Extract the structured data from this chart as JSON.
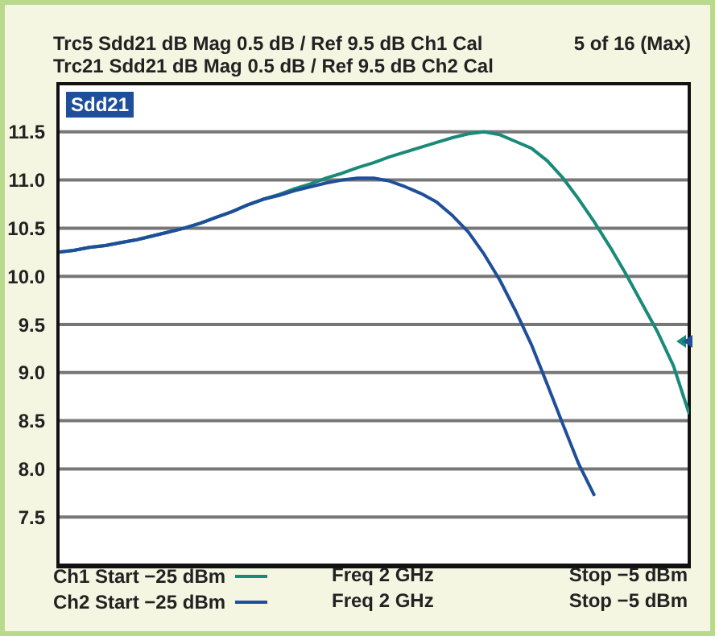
{
  "chart_data": {
    "type": "line",
    "title": "Trc5 Sdd21 dB Mag 0.5 dB / Ref 9.5 dB Ch1 Cal",
    "subtitle": "Trc21 Sdd21 dB Mag 0.5 dB / Ref 9.5 dB Ch2 Cal",
    "annotations": [
      "5 of 16 (Max)",
      "Sdd21",
      "Freq 2 GHz",
      "Stop −5 dBm",
      "Freq 2 GHz",
      "Stop −5 dBm"
    ],
    "categories": [
      null,
      null,
      null,
      null,
      null,
      null,
      null,
      null,
      null,
      null,
      null,
      null,
      null,
      null,
      null,
      null,
      null,
      null,
      null,
      null,
      null,
      null,
      null,
      null,
      null,
      null,
      null,
      null,
      null,
      null,
      null,
      null,
      null,
      null,
      null,
      null,
      null,
      null,
      null,
      null,
      null
    ],
    "ylim": [
      7,
      12
    ],
    "yticks": [
      {
        "value": 7.5,
        "label": "7.5"
      },
      {
        "value": 8,
        "label": "8.0"
      },
      {
        "value": 8.5,
        "label": "8.5"
      },
      {
        "value": 9,
        "label": "9.0"
      },
      {
        "value": 9.5,
        "label": "9.5"
      },
      {
        "value": 10,
        "label": "10.0"
      },
      {
        "value": 10.5,
        "label": "10.5"
      },
      {
        "value": 11,
        "label": "11.0"
      },
      {
        "value": 11.5,
        "label": "11.5"
      }
    ],
    "tick_labels": "y",
    "grid": true,
    "legend": "bottom left",
    "marker": "none",
    "line_style": "solid",
    "series": [
      {
        "name": "Ch1 Start −25 dBm",
        "color": "#1a8a78",
        "values": [
          10.25,
          10.27,
          10.3,
          10.32,
          10.35,
          10.38,
          10.42,
          10.46,
          10.5,
          10.55,
          10.61,
          10.67,
          10.74,
          10.8,
          10.85,
          10.91,
          10.96,
          11.02,
          11.07,
          11.13,
          11.18,
          11.24,
          11.29,
          11.34,
          11.39,
          11.44,
          11.48,
          11.5,
          11.47,
          11.4,
          11.33,
          11.2,
          11.02,
          10.8,
          10.56,
          10.3,
          10.02,
          9.72,
          9.42,
          9.07,
          8.57
        ]
      },
      {
        "name": "Ch2 Start −25 dBm",
        "color": "#1f4e9a",
        "values": [
          10.25,
          10.27,
          10.3,
          10.32,
          10.35,
          10.38,
          10.42,
          10.46,
          10.5,
          10.55,
          10.61,
          10.67,
          10.74,
          10.8,
          10.84,
          10.89,
          10.93,
          10.97,
          11.0,
          11.02,
          11.02,
          10.99,
          10.93,
          10.86,
          10.77,
          10.63,
          10.46,
          10.23,
          9.96,
          9.64,
          9.29,
          8.88,
          8.46,
          8.05,
          7.72,
          null,
          null,
          null,
          null,
          null,
          null
        ]
      }
    ]
  }
}
